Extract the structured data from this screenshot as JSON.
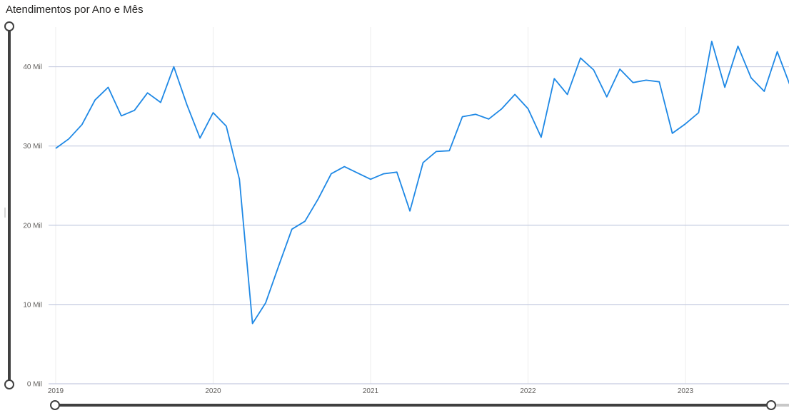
{
  "title": "Atendimentos por Ano e Mês",
  "colors": {
    "line": "#1e88e5",
    "gridline": "#c5cbe0",
    "vgrid": "#ececec",
    "slider": "#404040"
  },
  "chart_data": {
    "type": "line",
    "title": "Atendimentos por Ano e Mês",
    "xlabel": "",
    "ylabel": "",
    "ylim": [
      0,
      45000
    ],
    "y_ticks": [
      {
        "value": 0,
        "label": "0 Mil"
      },
      {
        "value": 10000,
        "label": "10 Mil"
      },
      {
        "value": 20000,
        "label": "20 Mil"
      },
      {
        "value": 30000,
        "label": "30 Mil"
      },
      {
        "value": 40000,
        "label": "40 Mil"
      }
    ],
    "x_ticks": [
      "2019",
      "2020",
      "2021",
      "2022",
      "2023"
    ],
    "x_start": "2019-01",
    "series": [
      {
        "months": [
          "2019-01",
          "2019-02",
          "2019-03",
          "2019-04",
          "2019-05",
          "2019-06",
          "2019-07",
          "2019-08",
          "2019-09",
          "2019-10",
          "2019-11",
          "2019-12",
          "2020-01",
          "2020-02",
          "2020-03",
          "2020-04",
          "2020-05",
          "2020-06",
          "2020-07",
          "2020-08",
          "2020-09",
          "2020-10",
          "2020-11",
          "2020-12",
          "2021-01",
          "2021-02",
          "2021-03",
          "2021-04",
          "2021-05",
          "2021-06",
          "2021-07",
          "2021-08",
          "2021-09",
          "2021-10",
          "2021-11",
          "2021-12",
          "2022-01",
          "2022-02",
          "2022-03",
          "2022-04",
          "2022-05",
          "2022-06",
          "2022-07",
          "2022-08",
          "2022-09",
          "2022-10",
          "2022-11",
          "2022-12",
          "2023-01",
          "2023-02",
          "2023-03",
          "2023-04",
          "2023-05",
          "2023-06",
          "2023-07",
          "2023-08",
          "2023-09"
        ],
        "values": [
          29700,
          30900,
          32700,
          35800,
          37400,
          33800,
          34500,
          36700,
          35500,
          40000,
          35200,
          31000,
          34200,
          32500,
          25800,
          7600,
          10200,
          14900,
          19500,
          20500,
          23300,
          26500,
          27400,
          26600,
          25800,
          26500,
          26700,
          21800,
          27900,
          29300,
          29400,
          33700,
          34000,
          33400,
          34700,
          36500,
          34700,
          31100,
          38500,
          36500,
          41100,
          39600,
          36200,
          39700,
          38000,
          38300,
          38100,
          31600,
          32800,
          34200,
          43200,
          37400,
          42600,
          38600,
          36900,
          41900,
          37500
        ]
      }
    ],
    "grid": true,
    "legend": "none"
  },
  "sliders": {
    "y_range": "0 - 45000",
    "x_range": "2019-01 - 2023-09"
  }
}
